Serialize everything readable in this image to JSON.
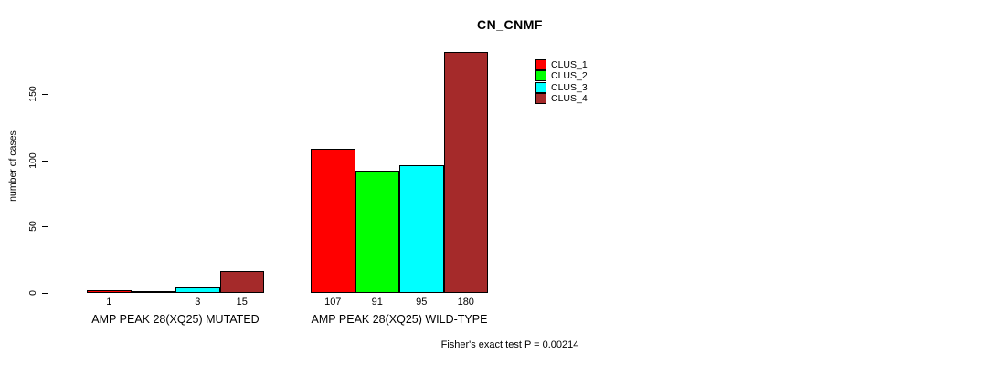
{
  "chart_data": {
    "type": "bar",
    "title": "CN_CNMF",
    "ylabel": "number of cases",
    "xlabel": "",
    "yticks": [
      0,
      50,
      100,
      150
    ],
    "ylim": [
      0,
      185
    ],
    "grid": false,
    "legend_position": "top-right-inside",
    "series_names": [
      "CLUS_1",
      "CLUS_2",
      "CLUS_3",
      "CLUS_4"
    ],
    "series_colors": [
      "#FF0000",
      "#00FF00",
      "#00FFFF",
      "#A52A2A"
    ],
    "categories": [
      "AMP PEAK 28(XQ25) MUTATED",
      "AMP PEAK 28(XQ25) WILD-TYPE"
    ],
    "series": [
      {
        "name": "CLUS_1",
        "values": [
          1,
          107
        ]
      },
      {
        "name": "CLUS_2",
        "values": [
          0,
          91
        ]
      },
      {
        "name": "CLUS_3",
        "values": [
          3,
          95
        ]
      },
      {
        "name": "CLUS_4",
        "values": [
          15,
          180
        ]
      }
    ],
    "bar_value_labels": [
      [
        "1",
        "",
        "3",
        "15"
      ],
      [
        "107",
        "91",
        "95",
        "180"
      ]
    ],
    "annotation": "Fisher's exact test P = 0.00214"
  }
}
